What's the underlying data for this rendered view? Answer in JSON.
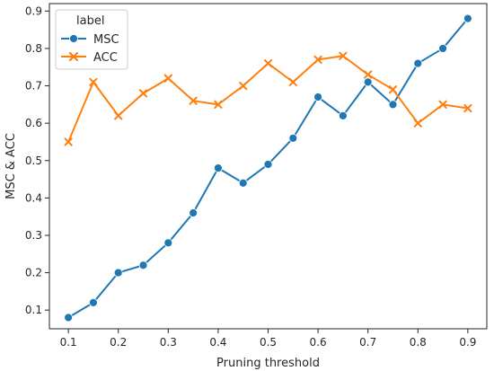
{
  "chart_data": {
    "type": "line",
    "xlabel": "Pruning threshold",
    "ylabel": "MSC & ACC",
    "xlim": [
      0.062,
      0.938
    ],
    "ylim": [
      0.05,
      0.92
    ],
    "xticks": [
      0.1,
      0.2,
      0.3,
      0.4,
      0.5,
      0.6,
      0.7,
      0.8,
      0.9
    ],
    "yticks": [
      0.1,
      0.2,
      0.3,
      0.4,
      0.5,
      0.6,
      0.7,
      0.8,
      0.9
    ],
    "grid": false,
    "legend": {
      "title": "label",
      "placement": "top-left"
    },
    "x": [
      0.1,
      0.15,
      0.2,
      0.25,
      0.3,
      0.35,
      0.4,
      0.45,
      0.5,
      0.55,
      0.6,
      0.65,
      0.7,
      0.75,
      0.8,
      0.85,
      0.9
    ],
    "series": [
      {
        "name": "MSC",
        "color": "#1f77b4",
        "marker": "circle",
        "values": [
          0.08,
          0.12,
          0.2,
          0.22,
          0.28,
          0.36,
          0.48,
          0.44,
          0.49,
          0.56,
          0.67,
          0.62,
          0.71,
          0.65,
          0.76,
          0.8,
          0.88
        ]
      },
      {
        "name": "ACC",
        "color": "#ff7f0e",
        "marker": "x",
        "values": [
          0.55,
          0.71,
          0.62,
          0.68,
          0.72,
          0.66,
          0.65,
          0.7,
          0.76,
          0.71,
          0.77,
          0.78,
          0.73,
          0.69,
          0.6,
          0.65,
          0.64
        ]
      }
    ]
  }
}
